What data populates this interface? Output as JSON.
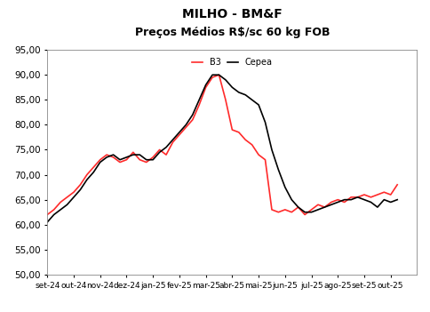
{
  "chart_data": {
    "type": "line",
    "title": "MILHO - BM&F",
    "subtitle": "Preços Médios R$/sc 60 kg FOB",
    "x": [
      0,
      0.25,
      0.5,
      0.75,
      1,
      1.25,
      1.5,
      1.75,
      2,
      2.25,
      2.5,
      2.75,
      3,
      3.25,
      3.5,
      3.75,
      4,
      4.25,
      4.5,
      4.75,
      5,
      5.25,
      5.5,
      5.75,
      6,
      6.25,
      6.5,
      6.75,
      7,
      7.25,
      7.5,
      7.75,
      8,
      8.25,
      8.5,
      8.75,
      9,
      9.25,
      9.5,
      9.75,
      10,
      10.25,
      10.5,
      10.75,
      11,
      11.25,
      11.5,
      11.75,
      12,
      12.25,
      12.5,
      12.75,
      13,
      13.25
    ],
    "series": [
      {
        "name": "B3",
        "color": "#ff2a2a",
        "values": [
          62.0,
          63.0,
          64.5,
          65.5,
          66.5,
          68.0,
          70.0,
          71.5,
          73.0,
          74.0,
          73.5,
          72.5,
          73.0,
          74.5,
          73.0,
          72.5,
          73.5,
          75.0,
          74.0,
          76.5,
          78.0,
          79.5,
          81.0,
          84.0,
          87.5,
          89.5,
          90.0,
          85.0,
          79.0,
          78.5,
          77.0,
          76.0,
          74.0,
          73.0,
          63.0,
          62.5,
          63.0,
          62.5,
          63.5,
          62.0,
          63.0,
          64.0,
          63.5,
          64.5,
          65.0,
          64.5,
          65.5,
          65.5,
          66.0,
          65.5,
          66.0,
          66.5,
          66.0,
          68.0
        ]
      },
      {
        "name": "Cepea",
        "color": "#000000",
        "values": [
          60.5,
          62.0,
          63.0,
          64.0,
          65.5,
          67.0,
          69.0,
          70.5,
          72.5,
          73.5,
          74.0,
          73.0,
          73.5,
          74.0,
          74.0,
          73.0,
          73.0,
          74.5,
          75.5,
          77.0,
          78.5,
          80.0,
          82.0,
          85.0,
          88.0,
          90.0,
          90.0,
          89.0,
          87.5,
          86.5,
          86.0,
          85.0,
          84.0,
          80.5,
          75.0,
          71.0,
          67.5,
          65.0,
          63.5,
          62.5,
          62.5,
          63.0,
          63.5,
          64.0,
          64.5,
          65.0,
          65.0,
          65.5,
          65.0,
          64.5,
          63.5,
          65.0,
          64.5,
          65.0
        ]
      }
    ],
    "xlim": [
      0,
      14
    ],
    "xticks": [
      {
        "value": 0,
        "label": "set-24"
      },
      {
        "value": 1,
        "label": "out-24"
      },
      {
        "value": 2,
        "label": "nov-24"
      },
      {
        "value": 3,
        "label": "dez-24"
      },
      {
        "value": 4,
        "label": "jan-25"
      },
      {
        "value": 5,
        "label": "fev-25"
      },
      {
        "value": 6,
        "label": "mar-25"
      },
      {
        "value": 7,
        "label": "abr-25"
      },
      {
        "value": 8,
        "label": "mai-25"
      },
      {
        "value": 9,
        "label": "jun-25"
      },
      {
        "value": 10,
        "label": "jul-25"
      },
      {
        "value": 11,
        "label": "ago-25"
      },
      {
        "value": 12,
        "label": "set-25"
      },
      {
        "value": 13,
        "label": "out-25"
      }
    ],
    "ylim": [
      50,
      95
    ],
    "yticks": [
      {
        "value": 50,
        "label": "50,00"
      },
      {
        "value": 55,
        "label": "55,00"
      },
      {
        "value": 60,
        "label": "60,00"
      },
      {
        "value": 65,
        "label": "65,00"
      },
      {
        "value": 70,
        "label": "70,00"
      },
      {
        "value": 75,
        "label": "75,00"
      },
      {
        "value": 80,
        "label": "80,00"
      },
      {
        "value": 85,
        "label": "85,00"
      },
      {
        "value": 90,
        "label": "90,00"
      },
      {
        "value": 95,
        "label": "95,00"
      }
    ],
    "legend": "upper center",
    "grid": false
  }
}
